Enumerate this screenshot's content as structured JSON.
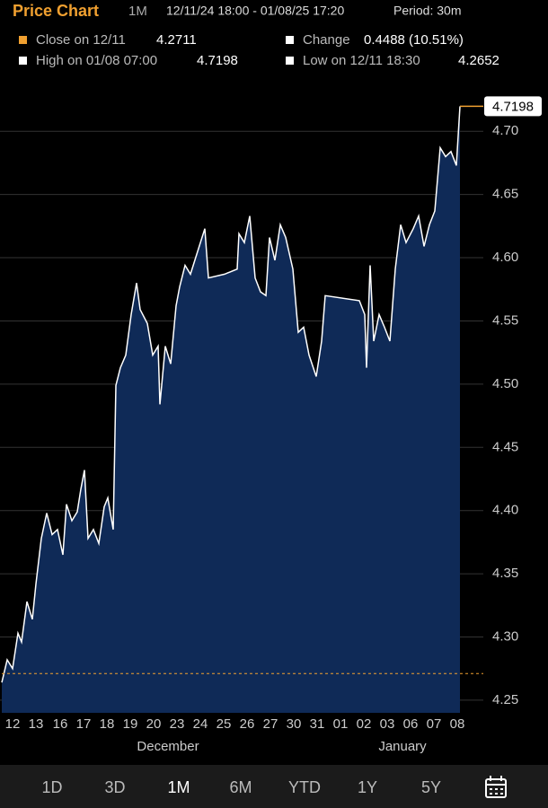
{
  "header": {
    "title": "Price Chart",
    "range": "1M",
    "dates": "12/11/24 18:00 - 01/08/25 17:20",
    "period": "Period: 30m"
  },
  "legend": {
    "close_label": "Close on 12/11",
    "close_value": 4.2711,
    "change_label": "Change",
    "change_value": "0.4488 (10.51%)",
    "high_label": "High on 01/08 07:00",
    "high_value": 4.7198,
    "low_label": "Low on 12/11 18:30",
    "low_value": 4.2652
  },
  "tabs": [
    "1D",
    "3D",
    "1M",
    "6M",
    "YTD",
    "1Y",
    "5Y"
  ],
  "active_tab": "1M",
  "chart_data": {
    "type": "area",
    "color": "#ffffff",
    "fill": "#0f2a57",
    "last_color": "#f0a030",
    "x": [
      0,
      6,
      12,
      18,
      22,
      28,
      34,
      38,
      44,
      50,
      56,
      62,
      68,
      72,
      78,
      84,
      88,
      92,
      96,
      102,
      108,
      114,
      118,
      124,
      127,
      132,
      138,
      144,
      150,
      154,
      162,
      168,
      174,
      176,
      182,
      188,
      194,
      198,
      204,
      210,
      218,
      226,
      230,
      248,
      262,
      264,
      270,
      276,
      282,
      288,
      294,
      298,
      304,
      310,
      316,
      324,
      330,
      336,
      342,
      350,
      356,
      360,
      398,
      404,
      406,
      410,
      414,
      420,
      426,
      432,
      438,
      444,
      450,
      458,
      464,
      470,
      476,
      482,
      488,
      494,
      500,
      506,
      510
    ],
    "values": [
      4.264,
      4.282,
      4.275,
      4.303,
      4.296,
      4.328,
      4.314,
      4.342,
      4.378,
      4.398,
      4.381,
      4.385,
      4.365,
      4.405,
      4.392,
      4.399,
      4.417,
      4.432,
      4.378,
      4.385,
      4.374,
      4.403,
      4.41,
      4.385,
      4.499,
      4.513,
      4.523,
      4.555,
      4.58,
      4.559,
      4.548,
      4.523,
      4.53,
      4.484,
      4.53,
      4.516,
      4.562,
      4.577,
      4.594,
      4.587,
      4.605,
      4.623,
      4.584,
      4.587,
      4.591,
      4.619,
      4.612,
      4.633,
      4.584,
      4.573,
      4.57,
      4.616,
      4.598,
      4.626,
      4.616,
      4.591,
      4.541,
      4.545,
      4.523,
      4.506,
      4.534,
      4.57,
      4.566,
      4.555,
      4.513,
      4.594,
      4.534,
      4.555,
      4.545,
      4.534,
      4.591,
      4.626,
      4.612,
      4.623,
      4.633,
      4.609,
      4.626,
      4.637,
      4.687,
      4.68,
      4.684,
      4.673,
      4.7198
    ],
    "xlim": [
      0,
      536
    ],
    "xticks": [
      {
        "value": 12,
        "label": "12"
      },
      {
        "value": 38,
        "label": "13"
      },
      {
        "value": 65,
        "label": "16"
      },
      {
        "value": 91,
        "label": "17"
      },
      {
        "value": 117,
        "label": "18"
      },
      {
        "value": 143,
        "label": "19"
      },
      {
        "value": 169,
        "label": "20"
      },
      {
        "value": 195,
        "label": "23"
      },
      {
        "value": 221,
        "label": "24"
      },
      {
        "value": 247,
        "label": "25"
      },
      {
        "value": 273,
        "label": "26"
      },
      {
        "value": 299,
        "label": "27"
      },
      {
        "value": 325,
        "label": "30"
      },
      {
        "value": 351,
        "label": "31"
      },
      {
        "value": 377,
        "label": "01"
      },
      {
        "value": 403,
        "label": "02"
      },
      {
        "value": 429,
        "label": "03"
      },
      {
        "value": 455,
        "label": "06"
      },
      {
        "value": 481,
        "label": "07"
      },
      {
        "value": 507,
        "label": "08"
      }
    ],
    "months": [
      {
        "value": 185,
        "label": "December"
      },
      {
        "value": 446,
        "label": "January"
      }
    ],
    "ylim": [
      4.24,
      4.73
    ],
    "yticks": [
      4.25,
      {
        "value": 4.3,
        "label": "4.30"
      },
      4.35,
      {
        "value": 4.4,
        "label": "4.40"
      },
      4.45,
      {
        "value": 4.5,
        "label": "4.50"
      },
      4.55,
      {
        "value": 4.6,
        "label": "4.60"
      },
      4.65,
      {
        "value": 4.7,
        "label": "4.70"
      }
    ],
    "grid": true
  }
}
